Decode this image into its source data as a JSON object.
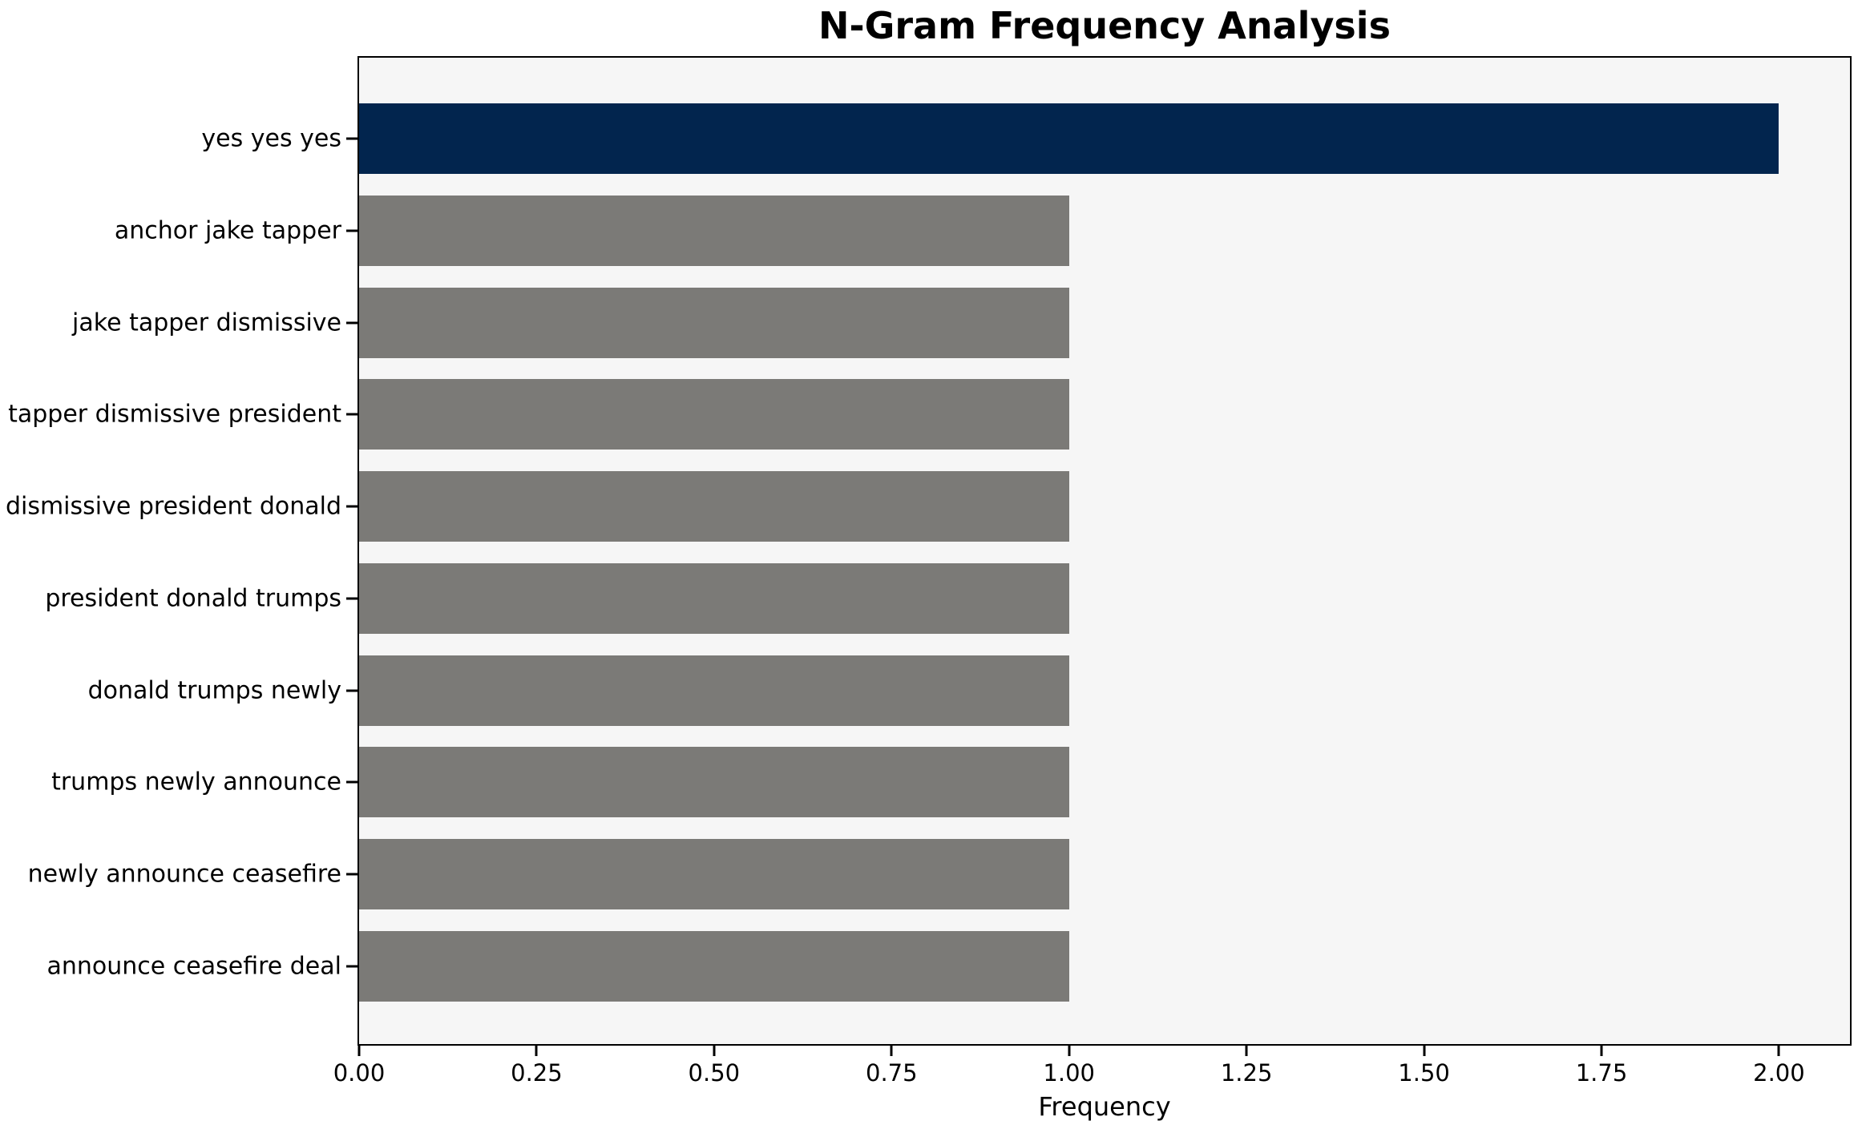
{
  "chart_data": {
    "type": "bar",
    "orientation": "horizontal",
    "title": "N-Gram Frequency Analysis",
    "xlabel": "Frequency",
    "ylabel": "",
    "categories": [
      "yes yes yes",
      "anchor jake tapper",
      "jake tapper dismissive",
      "tapper dismissive president",
      "dismissive president donald",
      "president donald trumps",
      "donald trumps newly",
      "trumps newly announce",
      "newly announce ceasefire",
      "announce ceasefire deal"
    ],
    "values": [
      2,
      1,
      1,
      1,
      1,
      1,
      1,
      1,
      1,
      1
    ],
    "bar_colors": [
      "#02254e",
      "#7b7a77",
      "#7b7a77",
      "#7b7a77",
      "#7b7a77",
      "#7b7a77",
      "#7b7a77",
      "#7b7a77",
      "#7b7a77",
      "#7b7a77"
    ],
    "xlim": [
      0,
      2.1
    ],
    "xticks": [
      0.0,
      0.25,
      0.5,
      0.75,
      1.0,
      1.25,
      1.5,
      1.75,
      2.0
    ],
    "xtick_labels": [
      "0.00",
      "0.25",
      "0.50",
      "0.75",
      "1.00",
      "1.25",
      "1.50",
      "1.75",
      "2.00"
    ],
    "grid": false,
    "legend": "none",
    "colors": {
      "highlight_bar": "#02254e",
      "default_bar": "#7b7a77",
      "plot_background": "#f6f6f6",
      "figure_background": "#ffffff",
      "spine": "#000000",
      "text": "#000000"
    }
  }
}
